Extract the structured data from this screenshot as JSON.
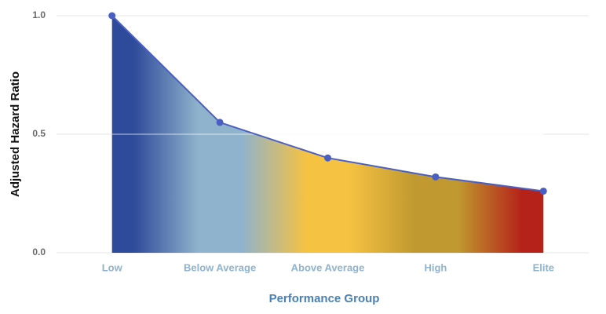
{
  "chart_data": {
    "type": "area",
    "x_label": "Performance Group",
    "y_label": "Adjusted Hazard Ratio",
    "categories": [
      "Low",
      "Below Average",
      "Above Average",
      "High",
      "Elite"
    ],
    "values": [
      1.0,
      0.55,
      0.4,
      0.32,
      0.26
    ],
    "color": "#4a5fc1",
    "fill_colors": [
      "#2e4a9a",
      "#8fb3cc",
      "#f5c242",
      "#c09a30",
      "#b5221a"
    ],
    "ylim": [
      0,
      1
    ],
    "yticks": [
      {
        "value": 0,
        "label": "0.0"
      },
      0.5,
      {
        "value": 1,
        "label": "1.0"
      }
    ],
    "grid": true
  }
}
